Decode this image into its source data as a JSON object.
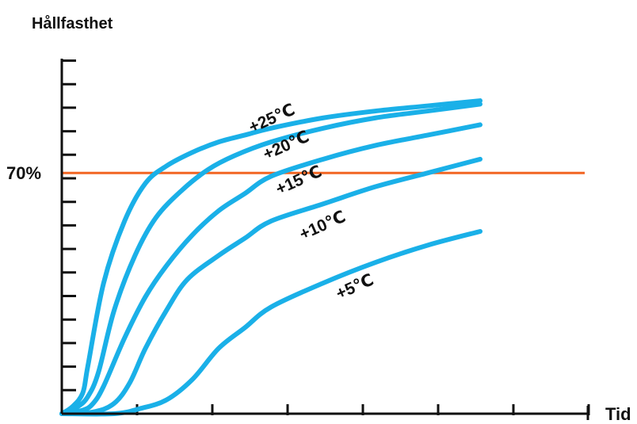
{
  "chart_data": {
    "type": "line",
    "ylabel": "Hållfasthet",
    "xlabel": "Tid",
    "xlim": [
      0,
      10
    ],
    "ylim": [
      0,
      100
    ],
    "x_ticks": 7,
    "y_ticks": 15,
    "reference_line": {
      "label": "70%",
      "value": 70,
      "color": "#f26522"
    },
    "series": [
      {
        "name": "+25℃",
        "color": "#1ab0e8",
        "x": [
          0,
          0.2,
          0.4,
          0.5,
          0.8,
          1.2,
          1.6,
          2.0,
          2.5,
          3.0,
          3.5,
          4.0,
          5.0,
          6.0,
          7.0,
          8.0
        ],
        "y": [
          0,
          2,
          6,
          14,
          38,
          56,
          67,
          72,
          76,
          79,
          81,
          83,
          86,
          88,
          89.5,
          91
        ]
      },
      {
        "name": "+20℃",
        "color": "#1ab0e8",
        "x": [
          0,
          0.3,
          0.5,
          0.7,
          1.0,
          1.4,
          1.8,
          2.3,
          2.8,
          3.3,
          4.0,
          5.0,
          6.0,
          7.0,
          8.0
        ],
        "y": [
          0,
          2,
          5,
          12,
          30,
          46,
          57,
          65,
          71,
          75,
          79,
          83,
          86,
          88,
          90
        ]
      },
      {
        "name": "+15℃",
        "color": "#1ab0e8",
        "x": [
          0,
          0.4,
          0.6,
          0.8,
          1.2,
          1.6,
          2.0,
          2.5,
          3.0,
          3.5,
          4.0,
          5.0,
          6.0,
          7.0,
          8.0
        ],
        "y": [
          0,
          1,
          3,
          8,
          22,
          34,
          43,
          52,
          59,
          64,
          69,
          74,
          78,
          81,
          84
        ]
      },
      {
        "name": "+10℃",
        "color": "#1ab0e8",
        "x": [
          0,
          0.6,
          1.0,
          1.3,
          1.6,
          2.0,
          2.4,
          3.0,
          3.5,
          4.0,
          5.0,
          6.0,
          7.0,
          8.0
        ],
        "y": [
          0,
          0.5,
          3,
          9,
          19,
          30,
          39,
          46,
          51,
          56,
          61,
          66,
          70,
          74
        ]
      },
      {
        "name": "+5℃",
        "color": "#1ab0e8",
        "x": [
          0,
          1.0,
          1.5,
          2.0,
          2.5,
          3.0,
          3.5,
          4.0,
          5.0,
          6.0,
          7.0,
          8.0
        ],
        "y": [
          0,
          0,
          1.5,
          4,
          10,
          19,
          25,
          31,
          38,
          44,
          49,
          53
        ]
      }
    ]
  }
}
